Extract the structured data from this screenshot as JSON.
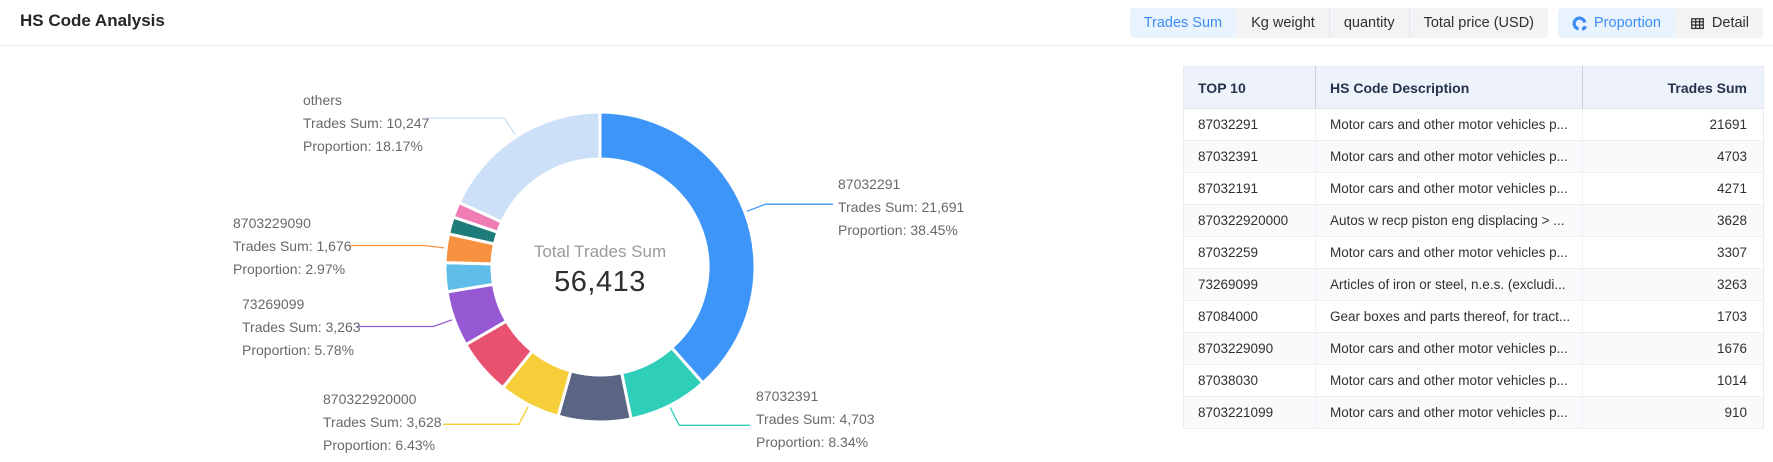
{
  "header": {
    "title": "HS Code Analysis"
  },
  "toolbar": {
    "metric_buttons": [
      {
        "label": "Trades Sum",
        "active": true
      },
      {
        "label": "Kg weight",
        "active": false
      },
      {
        "label": "quantity",
        "active": false
      },
      {
        "label": "Total price (USD)",
        "active": false
      }
    ],
    "view_buttons": [
      {
        "label": "Proportion",
        "icon": "pie-chart-icon",
        "active": true
      },
      {
        "label": "Detail",
        "icon": "table-icon",
        "active": false
      }
    ]
  },
  "chart_data": {
    "type": "pie",
    "center_label": "Total Trades Sum",
    "center_value": "56,413",
    "total": 56413,
    "sum_prefix": "Trades Sum: ",
    "prop_prefix": "Proportion: ",
    "slices": [
      {
        "id": "87032291",
        "label": "87032291",
        "value": 21691,
        "value_text": "21,691",
        "proportion": "38.45%",
        "color": "#3d96f7",
        "labeled": true
      },
      {
        "id": "87032391",
        "label": "87032391",
        "value": 4703,
        "value_text": "4,703",
        "proportion": "8.34%",
        "color": "#2fceb9",
        "labeled": true
      },
      {
        "id": "87032191",
        "label": "87032191",
        "value": 4271,
        "color": "#5a6584",
        "labeled": false
      },
      {
        "id": "870322920000",
        "label": "870322920000",
        "value": 3628,
        "value_text": "3,628",
        "proportion": "6.43%",
        "color": "#f5ce3a",
        "labeled": true
      },
      {
        "id": "87032259",
        "label": "87032259",
        "value": 3307,
        "color": "#e85270",
        "labeled": false
      },
      {
        "id": "73269099",
        "label": "73269099",
        "value": 3263,
        "value_text": "3,263",
        "proportion": "5.78%",
        "color": "#9659d3",
        "labeled": true
      },
      {
        "id": "87084000",
        "label": "87084000",
        "value": 1703,
        "color": "#5fbee9",
        "labeled": false
      },
      {
        "id": "8703229090",
        "label": "8703229090",
        "value": 1676,
        "value_text": "1,676",
        "proportion": "2.97%",
        "color": "#f69140",
        "labeled": true
      },
      {
        "id": "87038030",
        "label": "87038030",
        "value": 1014,
        "color": "#1e7c7b",
        "labeled": false
      },
      {
        "id": "8703221099",
        "label": "8703221099",
        "value": 910,
        "color": "#f07cb4",
        "labeled": false
      },
      {
        "id": "others",
        "label": "others",
        "value": 10247,
        "value_text": "10,247",
        "proportion": "18.17%",
        "color": "#cce1f7",
        "labeled": true
      }
    ]
  },
  "table": {
    "columns": [
      "TOP 10",
      "HS Code Description",
      "Trades Sum"
    ],
    "rows": [
      [
        "87032291",
        "Motor cars and other motor vehicles p...",
        "21691"
      ],
      [
        "87032391",
        "Motor cars and other motor vehicles p...",
        "4703"
      ],
      [
        "87032191",
        "Motor cars and other motor vehicles p...",
        "4271"
      ],
      [
        "870322920000",
        "Autos w recp piston eng displacing > ...",
        "3628"
      ],
      [
        "87032259",
        "Motor cars and other motor vehicles p...",
        "3307"
      ],
      [
        "73269099",
        "Articles of iron or steel, n.e.s. (excludi...",
        "3263"
      ],
      [
        "87084000",
        "Gear boxes and parts thereof, for tract...",
        "1703"
      ],
      [
        "8703229090",
        "Motor cars and other motor vehicles p...",
        "1676"
      ],
      [
        "87038030",
        "Motor cars and other motor vehicles p...",
        "1014"
      ],
      [
        "8703221099",
        "Motor cars and other motor vehicles p...",
        "910"
      ]
    ]
  }
}
